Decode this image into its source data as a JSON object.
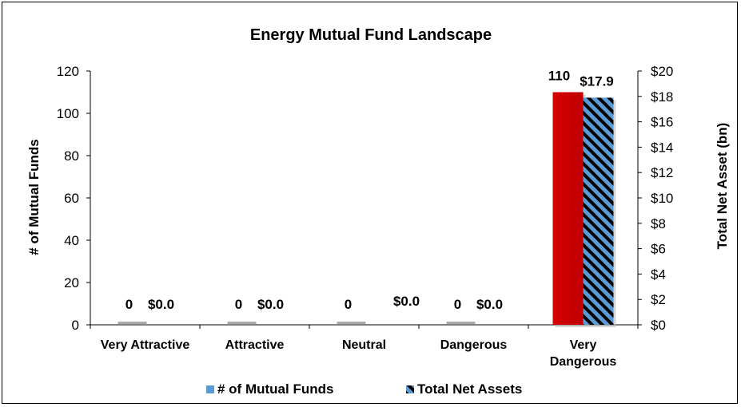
{
  "chart_data": {
    "type": "bar",
    "title": "Energy Mutual Fund Landscape",
    "categories": [
      "Very Attractive",
      "Attractive",
      "Neutral",
      "Dangerous",
      "Very Dangerous"
    ],
    "series": [
      {
        "name": "# of Mutual Funds",
        "axis": "left",
        "values": [
          0,
          0,
          0,
          0,
          110
        ],
        "labels": [
          "0",
          "0",
          "0",
          "0",
          "110"
        ],
        "color": "#cc0000"
      },
      {
        "name": "Total Net Assets",
        "axis": "right",
        "values": [
          0.0,
          0.0,
          0.0,
          0.0,
          17.9
        ],
        "labels": [
          "$0.0",
          "$0.0",
          "$0.0",
          "$0.0",
          "$17.9"
        ],
        "color": "#5b9bd5",
        "pattern": "diagonal-stripes-black"
      }
    ],
    "ylabel": "# of Mutual Funds",
    "ylabel_right": "Total Net Asset (bn)",
    "ylim": [
      0,
      120
    ],
    "ylim_right": [
      0,
      20
    ],
    "yticks": [
      "0",
      "20",
      "40",
      "60",
      "80",
      "100",
      "120"
    ],
    "yticks_right": [
      "$0",
      "$2",
      "$4",
      "$6",
      "$8",
      "$10",
      "$12",
      "$14",
      "$16",
      "$18",
      "$20"
    ],
    "legend": [
      "# of Mutual Funds",
      "Total Net Assets"
    ],
    "legend_position": "bottom",
    "grid": false
  }
}
